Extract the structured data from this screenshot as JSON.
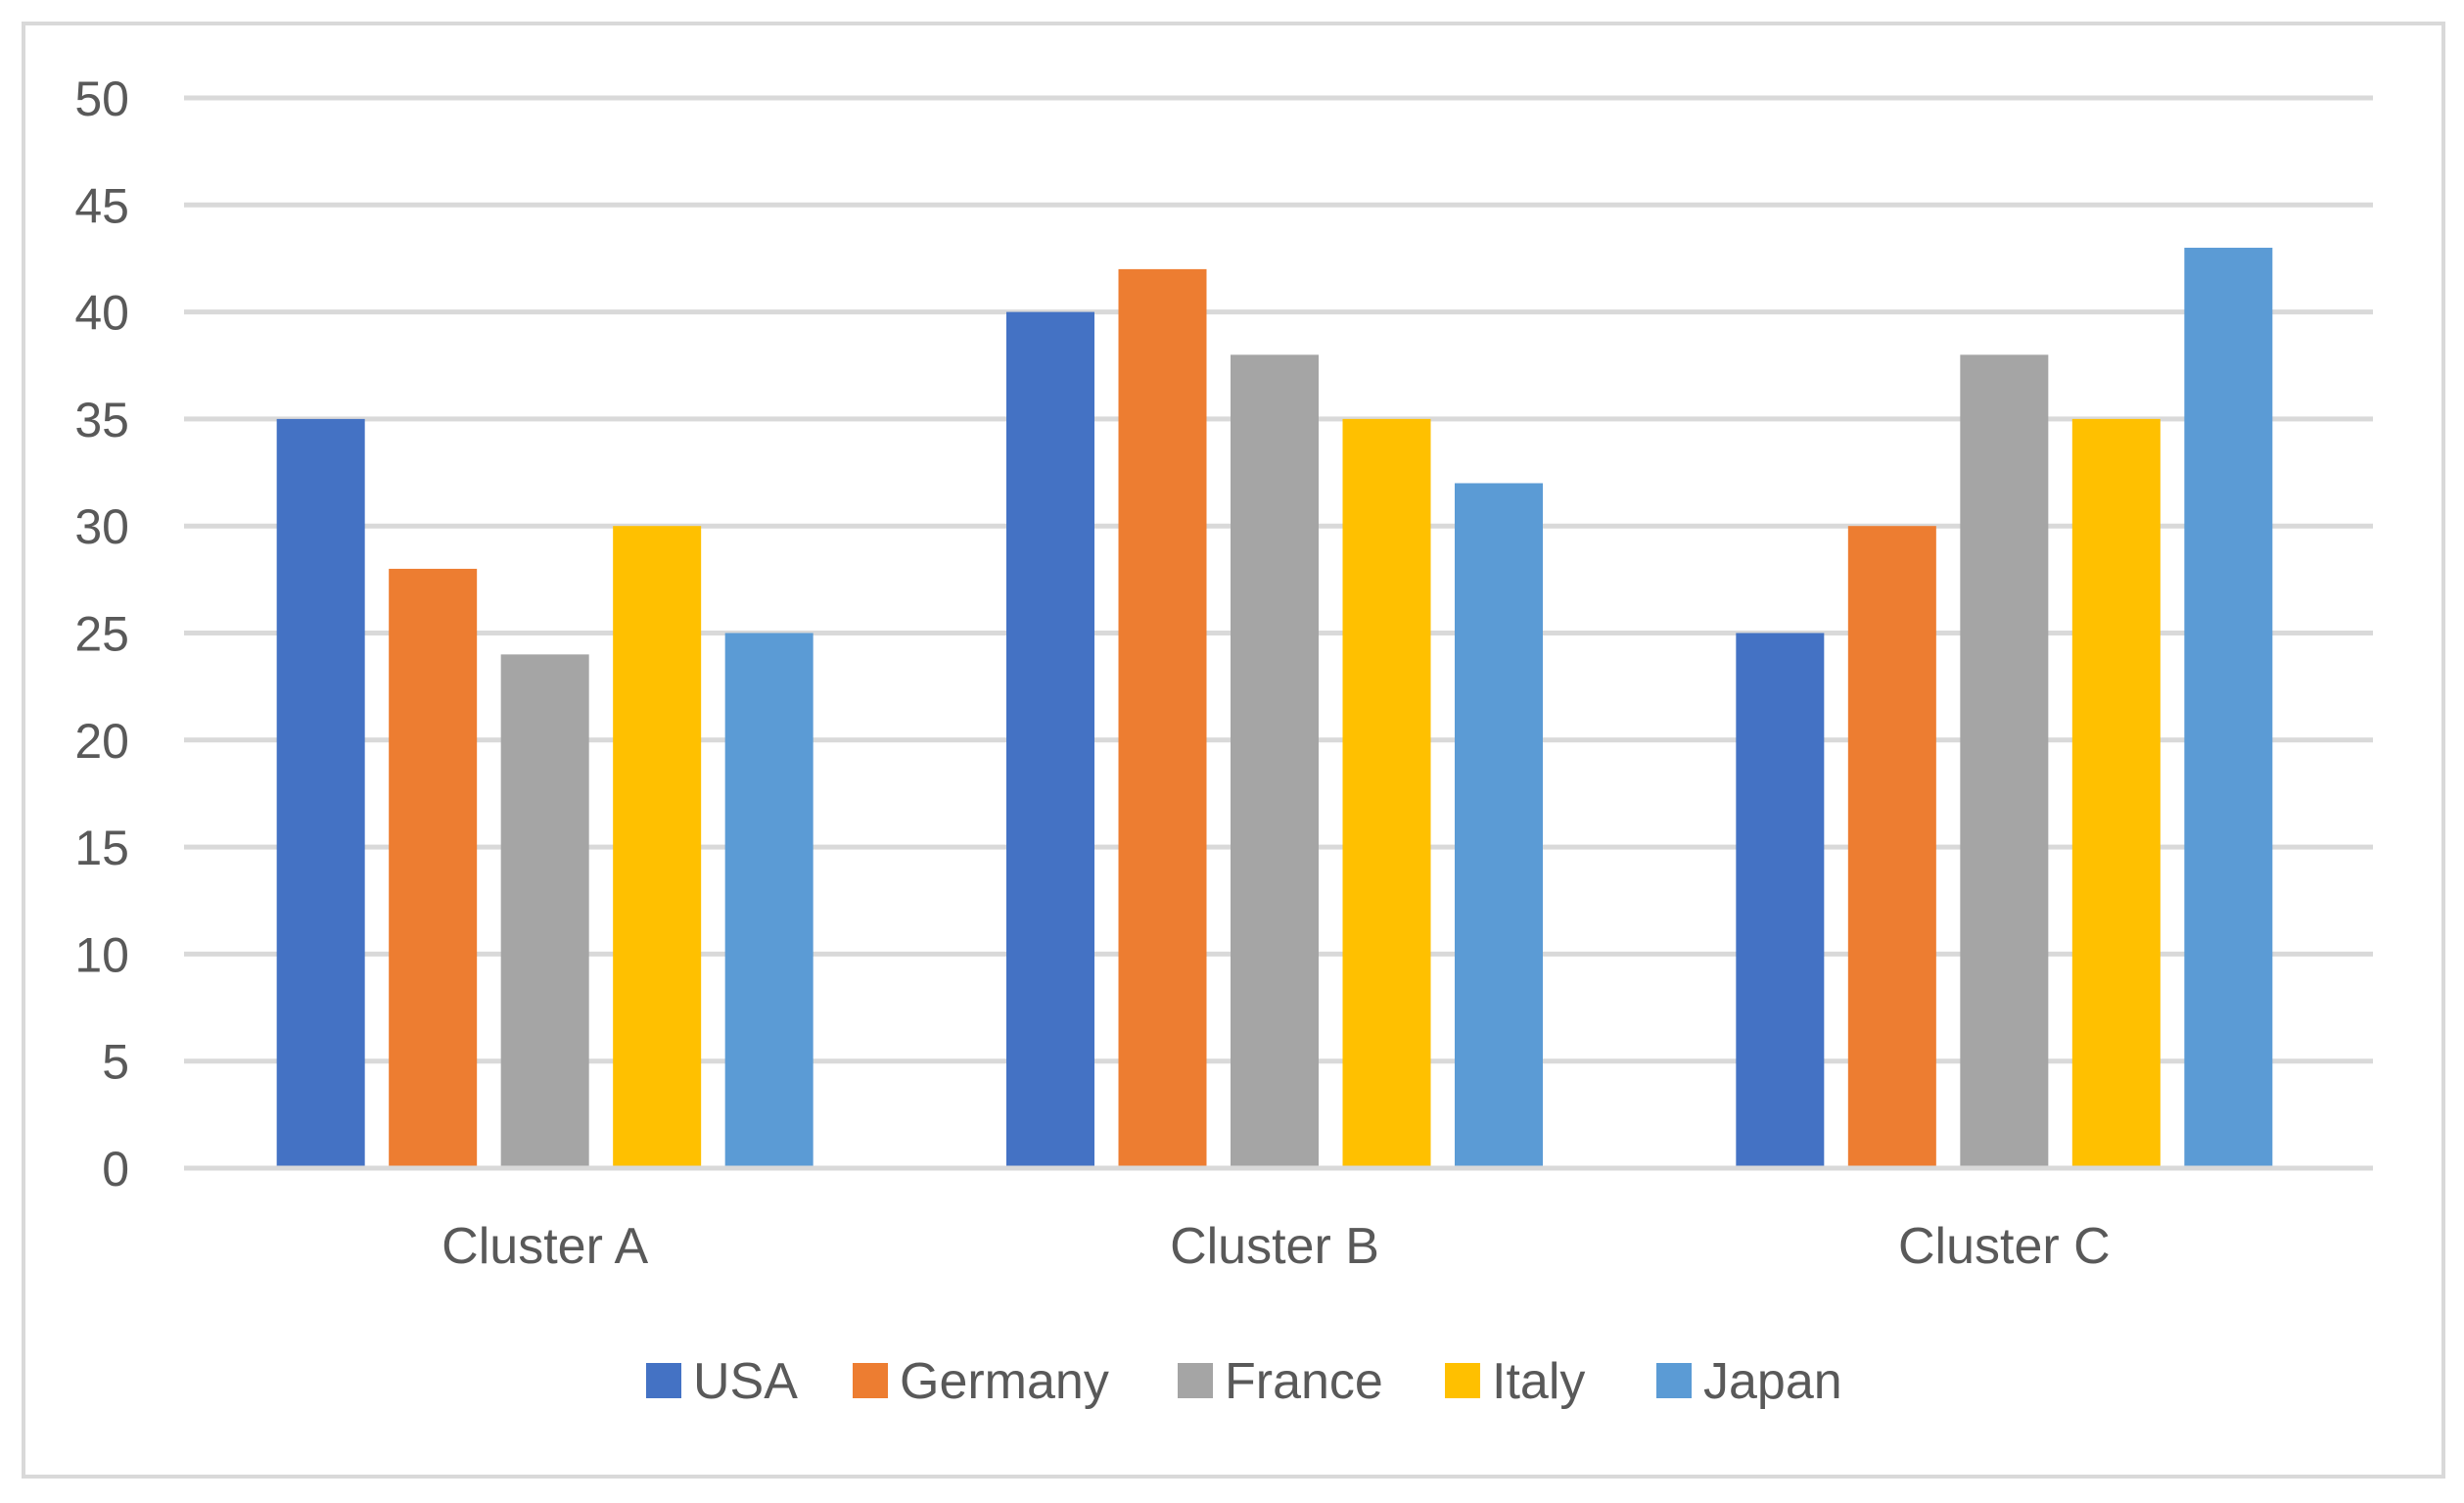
{
  "chart_data": {
    "type": "bar",
    "title": "",
    "xlabel": "",
    "ylabel": "",
    "categories": [
      "Cluster A",
      "Cluster B",
      "Cluster C"
    ],
    "series": [
      {
        "name": "USA",
        "color": "#4472C4",
        "values": [
          35,
          40,
          25
        ]
      },
      {
        "name": "Germany",
        "color": "#ED7D31",
        "values": [
          28,
          42,
          30
        ]
      },
      {
        "name": "France",
        "color": "#A5A5A5",
        "values": [
          24,
          38,
          38
        ]
      },
      {
        "name": "Italy",
        "color": "#FFC000",
        "values": [
          30,
          35,
          35
        ]
      },
      {
        "name": "Japan",
        "color": "#5B9BD5",
        "values": [
          25,
          32,
          43
        ]
      }
    ],
    "ylim": [
      0,
      50
    ],
    "yticks": [
      0,
      5,
      10,
      15,
      20,
      25,
      30,
      35,
      40,
      45,
      50
    ],
    "grid": true,
    "legend_position": "bottom"
  },
  "colors": {
    "grid": "#d9d9d9",
    "text": "#595959",
    "frame": "#d9d9d9"
  }
}
